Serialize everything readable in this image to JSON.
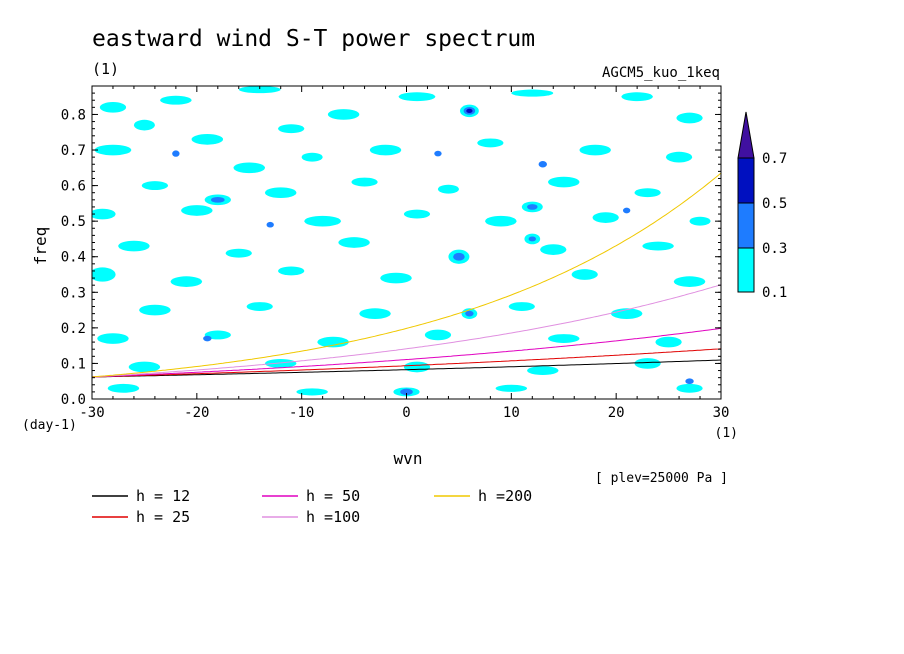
{
  "chart_data": {
    "type": "contour",
    "title": "eastward wind S-T power spectrum",
    "units_label": "(1)",
    "model_label": "AGCM5_kuo_1keq",
    "xlabel": "wvn",
    "ylabel": "freq",
    "x_units": "(1)",
    "y_units": "(day-1)",
    "xlim": [
      -30,
      30
    ],
    "ylim": [
      0,
      0.88
    ],
    "x_ticks": [
      "-30",
      "-20",
      "-10",
      "0",
      "10",
      "20",
      "30"
    ],
    "y_ticks": [
      "0.0",
      "0.1",
      "0.2",
      "0.3",
      "0.4",
      "0.5",
      "0.6",
      "0.7",
      "0.8"
    ],
    "level_note": "[ plev=25000 Pa ]",
    "colorbar": {
      "levels": [
        "0.1",
        "0.3",
        "0.5",
        "0.7"
      ],
      "colors": [
        "#00ffff",
        "#1e7cff",
        "#0010c0",
        "#4010a0"
      ]
    },
    "dispersion_curves": [
      {
        "label": "h = 12",
        "h": 12,
        "color": "#000000"
      },
      {
        "label": "h = 25",
        "h": 25,
        "color": "#e00000"
      },
      {
        "label": "h = 50",
        "h": 50,
        "color": "#e000c0"
      },
      {
        "label": "h =100",
        "h": 100,
        "color": "#e090e0"
      },
      {
        "label": "h =200",
        "h": 200,
        "color": "#f0c800"
      }
    ],
    "contour_patches": [
      {
        "x": -28,
        "y": 0.82,
        "w": 2.5,
        "h": 0.03,
        "level": 1
      },
      {
        "x": -22,
        "y": 0.84,
        "w": 3,
        "h": 0.025,
        "level": 1
      },
      {
        "x": -14,
        "y": 0.87,
        "w": 4,
        "h": 0.02,
        "level": 1
      },
      {
        "x": -25,
        "y": 0.77,
        "w": 2,
        "h": 0.03,
        "level": 1
      },
      {
        "x": -19,
        "y": 0.73,
        "w": 3,
        "h": 0.03,
        "level": 1
      },
      {
        "x": -11,
        "y": 0.76,
        "w": 2.5,
        "h": 0.025,
        "level": 1
      },
      {
        "x": -6,
        "y": 0.8,
        "w": 3,
        "h": 0.03,
        "level": 1
      },
      {
        "x": 1,
        "y": 0.85,
        "w": 3.5,
        "h": 0.025,
        "level": 1
      },
      {
        "x": 12,
        "y": 0.86,
        "w": 4,
        "h": 0.02,
        "level": 1
      },
      {
        "x": 22,
        "y": 0.85,
        "w": 3,
        "h": 0.025,
        "level": 1
      },
      {
        "x": 27,
        "y": 0.79,
        "w": 2.5,
        "h": 0.03,
        "level": 1
      },
      {
        "x": -28,
        "y": 0.7,
        "w": 3.5,
        "h": 0.03,
        "level": 1
      },
      {
        "x": -15,
        "y": 0.65,
        "w": 3,
        "h": 0.03,
        "level": 1
      },
      {
        "x": -9,
        "y": 0.68,
        "w": 2,
        "h": 0.025,
        "level": 1
      },
      {
        "x": -2,
        "y": 0.7,
        "w": 3,
        "h": 0.03,
        "level": 1
      },
      {
        "x": 8,
        "y": 0.72,
        "w": 2.5,
        "h": 0.025,
        "level": 1
      },
      {
        "x": 18,
        "y": 0.7,
        "w": 3,
        "h": 0.03,
        "level": 1
      },
      {
        "x": 26,
        "y": 0.68,
        "w": 2.5,
        "h": 0.03,
        "level": 1
      },
      {
        "x": -24,
        "y": 0.6,
        "w": 2.5,
        "h": 0.025,
        "level": 1
      },
      {
        "x": -12,
        "y": 0.58,
        "w": 3,
        "h": 0.03,
        "level": 1
      },
      {
        "x": -4,
        "y": 0.61,
        "w": 2.5,
        "h": 0.025,
        "level": 1
      },
      {
        "x": 4,
        "y": 0.59,
        "w": 2,
        "h": 0.025,
        "level": 1
      },
      {
        "x": 15,
        "y": 0.61,
        "w": 3,
        "h": 0.03,
        "level": 1
      },
      {
        "x": 23,
        "y": 0.58,
        "w": 2.5,
        "h": 0.025,
        "level": 1
      },
      {
        "x": -29,
        "y": 0.52,
        "w": 2.5,
        "h": 0.03,
        "level": 1
      },
      {
        "x": -20,
        "y": 0.53,
        "w": 3,
        "h": 0.03,
        "level": 1
      },
      {
        "x": -8,
        "y": 0.5,
        "w": 3.5,
        "h": 0.03,
        "level": 1
      },
      {
        "x": 1,
        "y": 0.52,
        "w": 2.5,
        "h": 0.025,
        "level": 1
      },
      {
        "x": 9,
        "y": 0.5,
        "w": 3,
        "h": 0.03,
        "level": 1
      },
      {
        "x": 19,
        "y": 0.51,
        "w": 2.5,
        "h": 0.03,
        "level": 1
      },
      {
        "x": 28,
        "y": 0.5,
        "w": 2,
        "h": 0.025,
        "level": 1
      },
      {
        "x": -26,
        "y": 0.43,
        "w": 3,
        "h": 0.03,
        "level": 1
      },
      {
        "x": -16,
        "y": 0.41,
        "w": 2.5,
        "h": 0.025,
        "level": 1
      },
      {
        "x": -5,
        "y": 0.44,
        "w": 3,
        "h": 0.03,
        "level": 1
      },
      {
        "x": 14,
        "y": 0.42,
        "w": 2.5,
        "h": 0.03,
        "level": 1
      },
      {
        "x": 24,
        "y": 0.43,
        "w": 3,
        "h": 0.025,
        "level": 1
      },
      {
        "x": -29,
        "y": 0.35,
        "w": 2.5,
        "h": 0.04,
        "level": 1
      },
      {
        "x": -21,
        "y": 0.33,
        "w": 3,
        "h": 0.03,
        "level": 1
      },
      {
        "x": -11,
        "y": 0.36,
        "w": 2.5,
        "h": 0.025,
        "level": 1
      },
      {
        "x": -1,
        "y": 0.34,
        "w": 3,
        "h": 0.03,
        "level": 1
      },
      {
        "x": 17,
        "y": 0.35,
        "w": 2.5,
        "h": 0.03,
        "level": 1
      },
      {
        "x": 27,
        "y": 0.33,
        "w": 3,
        "h": 0.03,
        "level": 1
      },
      {
        "x": -24,
        "y": 0.25,
        "w": 3,
        "h": 0.03,
        "level": 1
      },
      {
        "x": -14,
        "y": 0.26,
        "w": 2.5,
        "h": 0.025,
        "level": 1
      },
      {
        "x": -3,
        "y": 0.24,
        "w": 3,
        "h": 0.03,
        "level": 1
      },
      {
        "x": 11,
        "y": 0.26,
        "w": 2.5,
        "h": 0.025,
        "level": 1
      },
      {
        "x": 21,
        "y": 0.24,
        "w": 3,
        "h": 0.03,
        "level": 1
      },
      {
        "x": -28,
        "y": 0.17,
        "w": 3,
        "h": 0.03,
        "level": 1
      },
      {
        "x": -18,
        "y": 0.18,
        "w": 2.5,
        "h": 0.025,
        "level": 1
      },
      {
        "x": -7,
        "y": 0.16,
        "w": 3,
        "h": 0.03,
        "level": 1
      },
      {
        "x": 3,
        "y": 0.18,
        "w": 2.5,
        "h": 0.03,
        "level": 1
      },
      {
        "x": 15,
        "y": 0.17,
        "w": 3,
        "h": 0.025,
        "level": 1
      },
      {
        "x": 25,
        "y": 0.16,
        "w": 2.5,
        "h": 0.03,
        "level": 1
      },
      {
        "x": -25,
        "y": 0.09,
        "w": 3,
        "h": 0.03,
        "level": 1
      },
      {
        "x": -12,
        "y": 0.1,
        "w": 3,
        "h": 0.025,
        "level": 1
      },
      {
        "x": 1,
        "y": 0.09,
        "w": 2.5,
        "h": 0.03,
        "level": 1
      },
      {
        "x": 13,
        "y": 0.08,
        "w": 3,
        "h": 0.025,
        "level": 1
      },
      {
        "x": 23,
        "y": 0.1,
        "w": 2.5,
        "h": 0.03,
        "level": 1
      },
      {
        "x": -27,
        "y": 0.03,
        "w": 3,
        "h": 0.025,
        "level": 1
      },
      {
        "x": -9,
        "y": 0.02,
        "w": 3,
        "h": 0.02,
        "level": 1
      },
      {
        "x": 0,
        "y": 0.02,
        "w": 2.5,
        "h": 0.025,
        "level": 1
      },
      {
        "x": 10,
        "y": 0.03,
        "w": 3,
        "h": 0.02,
        "level": 1
      },
      {
        "x": 27,
        "y": 0.03,
        "w": 2.5,
        "h": 0.025,
        "level": 1
      },
      {
        "x": 6,
        "y": 0.81,
        "w": 1.8,
        "h": 0.035,
        "level": 1
      },
      {
        "x": 6,
        "y": 0.81,
        "w": 1.1,
        "h": 0.022,
        "level": 2
      },
      {
        "x": 6,
        "y": 0.81,
        "w": 0.6,
        "h": 0.012,
        "level": 3
      },
      {
        "x": 5,
        "y": 0.4,
        "w": 2,
        "h": 0.04,
        "level": 1
      },
      {
        "x": 5,
        "y": 0.4,
        "w": 1.1,
        "h": 0.022,
        "level": 2
      },
      {
        "x": 6,
        "y": 0.24,
        "w": 1.5,
        "h": 0.03,
        "level": 1
      },
      {
        "x": 6,
        "y": 0.24,
        "w": 0.8,
        "h": 0.016,
        "level": 2
      },
      {
        "x": 12,
        "y": 0.54,
        "w": 2,
        "h": 0.03,
        "level": 1
      },
      {
        "x": 12,
        "y": 0.54,
        "w": 1,
        "h": 0.016,
        "level": 2
      },
      {
        "x": 12,
        "y": 0.45,
        "w": 1.5,
        "h": 0.03,
        "level": 1
      },
      {
        "x": 12,
        "y": 0.45,
        "w": 0.7,
        "h": 0.014,
        "level": 2
      },
      {
        "x": -18,
        "y": 0.56,
        "w": 2.5,
        "h": 0.03,
        "level": 1
      },
      {
        "x": -18,
        "y": 0.56,
        "w": 1.3,
        "h": 0.016,
        "level": 2
      },
      {
        "x": 0,
        "y": 0.02,
        "w": 1.2,
        "h": 0.018,
        "level": 2
      },
      {
        "x": -19,
        "y": 0.17,
        "w": 0.8,
        "h": 0.016,
        "level": 2
      },
      {
        "x": -22,
        "y": 0.69,
        "w": 0.7,
        "h": 0.018,
        "level": 2
      },
      {
        "x": 13,
        "y": 0.66,
        "w": 0.8,
        "h": 0.018,
        "level": 2
      },
      {
        "x": 27,
        "y": 0.05,
        "w": 0.8,
        "h": 0.016,
        "level": 2
      },
      {
        "x": 3,
        "y": 0.69,
        "w": 0.7,
        "h": 0.016,
        "level": 2
      },
      {
        "x": -13,
        "y": 0.49,
        "w": 0.7,
        "h": 0.016,
        "level": 2
      },
      {
        "x": 21,
        "y": 0.53,
        "w": 0.7,
        "h": 0.016,
        "level": 2
      }
    ]
  }
}
